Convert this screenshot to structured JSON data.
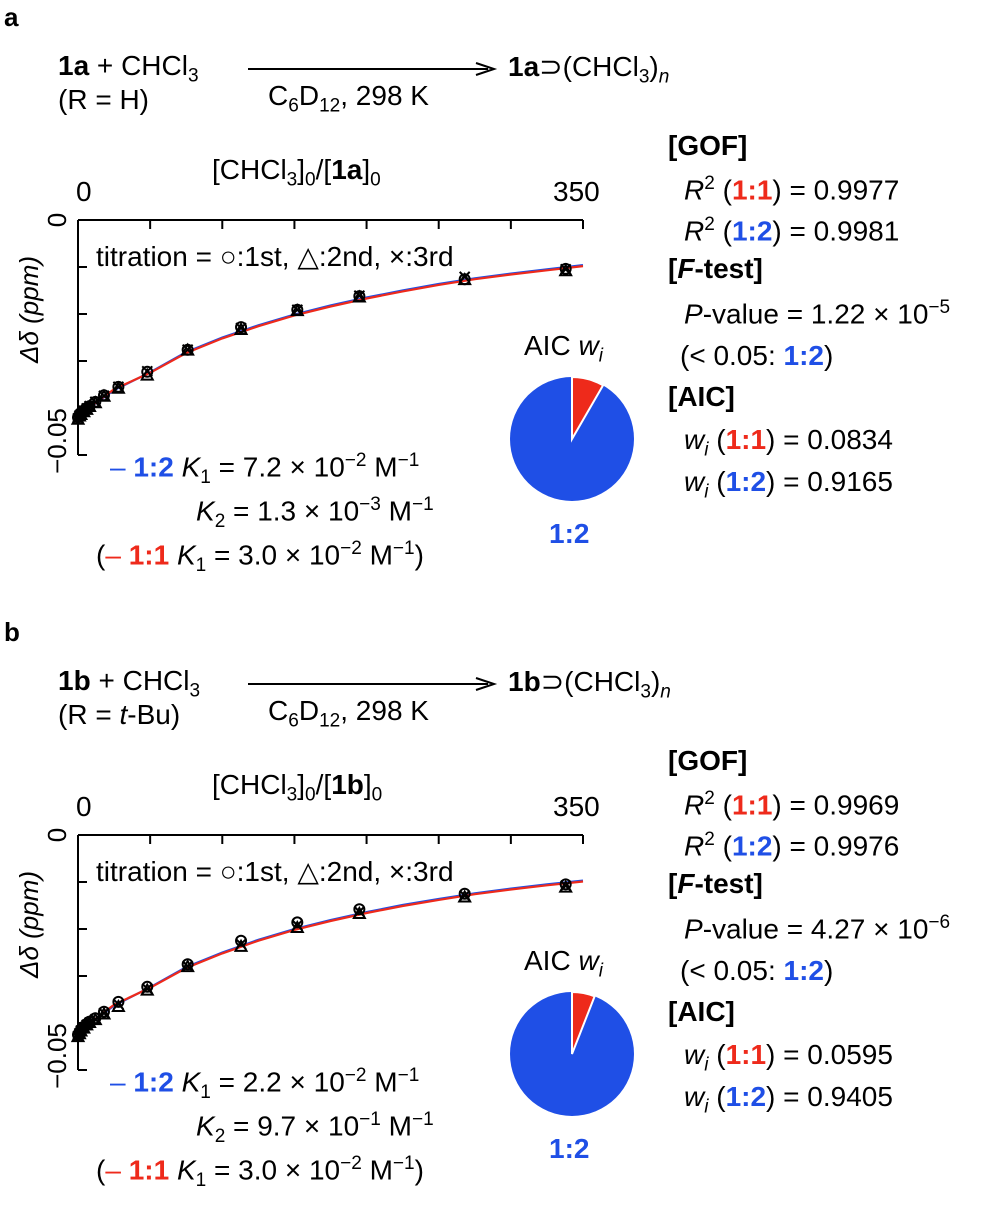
{
  "panels": [
    {
      "letter": "a",
      "reaction": {
        "host": "1a",
        "plus": " + CHCl",
        "plus_sub": "3",
        "substituent": "(R = H)",
        "conditions_pre": "C",
        "conditions_sub1": "6",
        "conditions_mid": "D",
        "conditions_sub2": "12",
        "conditions_post": ", 298 K",
        "product_host": "1a",
        "product_rest": "⊃(CHCl",
        "product_sub": "3",
        "product_close": ")",
        "product_n": "n"
      },
      "chart_data": {
        "type": "scatter",
        "xlabel": "[CHCl3]0/[1a]0",
        "ylabel": "Δδ (ppm)",
        "xlim": [
          0,
          350
        ],
        "ylim": [
          0,
          -0.05
        ],
        "x_ticks": [
          "0",
          "350"
        ],
        "y_ticks": [
          "0",
          "−0.05"
        ],
        "legend": "titration = ○:1st, △:2nd, ×:3rd",
        "series": [
          {
            "name": "1st",
            "marker": "circle",
            "x": [
              0,
              1,
              2,
              4,
              6,
              8,
              12,
              18,
              28,
              48,
              76,
              113,
              152,
              195,
              268,
              338
            ],
            "y": [
              -0.042,
              -0.0415,
              -0.0412,
              -0.0405,
              -0.04,
              -0.0396,
              -0.0387,
              -0.0373,
              -0.0355,
              -0.0323,
              -0.0276,
              -0.0228,
              -0.0191,
              -0.0162,
              -0.0126,
              -0.0104
            ]
          },
          {
            "name": "2nd",
            "marker": "triangle",
            "x": [
              0,
              1,
              2,
              4,
              6,
              8,
              12,
              18,
              28,
              48,
              76,
              113,
              152,
              195,
              268,
              338
            ],
            "y": [
              -0.0425,
              -0.0418,
              -0.0415,
              -0.0409,
              -0.0404,
              -0.0398,
              -0.039,
              -0.0376,
              -0.0359,
              -0.0331,
              -0.0278,
              -0.0234,
              -0.0194,
              -0.0165,
              -0.0128,
              -0.0109
            ]
          },
          {
            "name": "3rd",
            "marker": "cross",
            "x": [
              0,
              1,
              2,
              4,
              6,
              8,
              12,
              18,
              28,
              48,
              76,
              113,
              152,
              195,
              268,
              338
            ],
            "y": [
              -0.0422,
              -0.0416,
              -0.0413,
              -0.0406,
              -0.0401,
              -0.0396,
              -0.0387,
              -0.0374,
              -0.0355,
              -0.0322,
              -0.0276,
              -0.023,
              -0.0191,
              -0.0161,
              -0.0121,
              -0.0105
            ]
          },
          {
            "name": "1:2",
            "type": "line",
            "color": "#1f4fe6",
            "x": [
              0,
              10,
              25,
              50,
              75,
              100,
              125,
              150,
              175,
              200,
              225,
              250,
              275,
              300,
              325,
              350
            ],
            "y": [
              -0.0425,
              -0.0395,
              -0.0362,
              -0.0324,
              -0.0281,
              -0.025,
              -0.0224,
              -0.0201,
              -0.0182,
              -0.0165,
              -0.015,
              -0.0136,
              -0.0124,
              -0.0114,
              -0.0105,
              -0.0096
            ]
          },
          {
            "name": "1:1",
            "type": "line",
            "color": "#ee2a1b",
            "x": [
              0,
              10,
              25,
              50,
              75,
              100,
              125,
              150,
              175,
              200,
              225,
              250,
              275,
              300,
              325,
              350
            ],
            "y": [
              -0.0425,
              -0.0394,
              -0.036,
              -0.0325,
              -0.0283,
              -0.0252,
              -0.0226,
              -0.0203,
              -0.0184,
              -0.0167,
              -0.0152,
              -0.0138,
              -0.0126,
              -0.0116,
              -0.0107,
              -0.0098
            ]
          }
        ]
      },
      "axis": {
        "x_title_pre": "[CHCl",
        "x_title_sub1": "3",
        "x_title_mid": "]",
        "x_title_sub2": "0",
        "x_title_slash": "/[",
        "x_title_host": "1a",
        "x_title_close": "]",
        "x_title_sub3": "0",
        "x_min_label": "0",
        "x_max_label": "350",
        "y_top_label": "0",
        "y_bottom_label": "−0.05",
        "y_title": "Δδ (ppm)",
        "legend_text": "titration = ○:1st, △:2nd, ×:3rd"
      },
      "fit": {
        "line1_dash": "–",
        "line1_model": "1:2",
        "line1_k": "K",
        "line1_k_sub": "1",
        "line1_val": " = 7.2 × 10",
        "line1_exp": "−2",
        "line1_unit": " M",
        "line1_unit_exp": "−1",
        "line2_k": "K",
        "line2_k_sub": "2",
        "line2_val": " = 1.3 × 10",
        "line2_exp": "−3",
        "line2_unit": " M",
        "line2_unit_exp": "−1",
        "line3_open": "(",
        "line3_dash": "–",
        "line3_model": "1:1",
        "line3_k": "K",
        "line3_k_sub": "1",
        "line3_val": " = 3.0 × 10",
        "line3_exp": "−2",
        "line3_unit": " M",
        "line3_unit_exp": "−1",
        "line3_close": ")"
      },
      "aic_pie": {
        "label": "AIC ",
        "label_w": "w",
        "label_sub": "i",
        "weights": {
          "1:1": 0.0834,
          "1:2": 0.9165
        },
        "colors": {
          "1:1": "#ee2a1b",
          "1:2": "#1f4fe6"
        },
        "caption": "1:2"
      },
      "stats": {
        "gof_header": "[GOF]",
        "r2_11_pre": "R",
        "r2_11_exp": "2",
        "r2_11_open": " (",
        "r2_11_model": "1:1",
        "r2_11_value": ") = 0.9977",
        "r2_12_pre": "R",
        "r2_12_exp": "2",
        "r2_12_open": " (",
        "r2_12_model": "1:2",
        "r2_12_value": ") = 0.9981",
        "ftest_open": "[",
        "ftest_f": "F",
        "ftest_rest": "-test]",
        "p_label": "P",
        "p_value": "-value = 1.22 × 10",
        "p_exp": "−5",
        "p_note_pre": "(< 0.05: ",
        "p_note_model": "1:2",
        "p_note_close": ")",
        "aic_header": "[AIC]",
        "w11_pre": "w",
        "w11_sub": "i",
        "w11_open": " (",
        "w11_model": "1:1",
        "w11_value": ") =  0.0834",
        "w12_pre": "w",
        "w12_sub": "i",
        "w12_open": " (",
        "w12_model": "1:2",
        "w12_value": ") =  0.9165"
      }
    },
    {
      "letter": "b",
      "reaction": {
        "host": "1b",
        "plus": " + CHCl",
        "plus_sub": "3",
        "substituent_pre": "(R = ",
        "substituent_it": "t",
        "substituent_post": "-Bu)",
        "conditions_pre": "C",
        "conditions_sub1": "6",
        "conditions_mid": "D",
        "conditions_sub2": "12",
        "conditions_post": ", 298 K",
        "product_host": "1b",
        "product_rest": "⊃(CHCl",
        "product_sub": "3",
        "product_close": ")",
        "product_n": "n"
      },
      "chart_data": {
        "type": "scatter",
        "xlabel": "[CHCl3]0/[1b]0",
        "ylabel": "Δδ (ppm)",
        "xlim": [
          0,
          350
        ],
        "ylim": [
          0,
          -0.05
        ],
        "x_ticks": [
          "0",
          "350"
        ],
        "y_ticks": [
          "0",
          "−0.05"
        ],
        "legend": "titration = ○:1st, △:2nd, ×:3rd",
        "series": [
          {
            "name": "1st",
            "marker": "circle",
            "x": [
              0,
              1,
              2,
              4,
              6,
              8,
              12,
              18,
              28,
              48,
              76,
              113,
              152,
              195,
              268,
              338
            ],
            "y": [
              -0.0425,
              -0.042,
              -0.0415,
              -0.0408,
              -0.0402,
              -0.0397,
              -0.039,
              -0.0376,
              -0.0355,
              -0.0323,
              -0.0275,
              -0.0225,
              -0.0186,
              -0.0158,
              -0.0125,
              -0.0105
            ]
          },
          {
            "name": "2nd",
            "marker": "triangle",
            "x": [
              0,
              1,
              2,
              4,
              6,
              8,
              12,
              18,
              28,
              48,
              76,
              113,
              152,
              195,
              268,
              338
            ],
            "y": [
              -0.043,
              -0.0424,
              -0.0418,
              -0.0412,
              -0.0405,
              -0.04,
              -0.0394,
              -0.0382,
              -0.0366,
              -0.0331,
              -0.0281,
              -0.0238,
              -0.0198,
              -0.0168,
              -0.0133,
              -0.0112
            ]
          },
          {
            "name": "3rd",
            "marker": "cross",
            "x": [
              0,
              1,
              2,
              4,
              6,
              8,
              12,
              18,
              28,
              48,
              76,
              113,
              152,
              195,
              268,
              338
            ],
            "y": [
              -0.0428,
              -0.0422,
              -0.0416,
              -0.041,
              -0.0404,
              -0.0399,
              -0.0392,
              -0.0379,
              -0.036,
              -0.0327,
              -0.0279,
              -0.0232,
              -0.0192,
              -0.0163,
              -0.0129,
              -0.0108
            ]
          },
          {
            "name": "1:2",
            "type": "line",
            "color": "#1f4fe6",
            "x": [
              0,
              10,
              25,
              50,
              75,
              100,
              125,
              150,
              175,
              200,
              225,
              250,
              275,
              300,
              325,
              350
            ],
            "y": [
              -0.0428,
              -0.0397,
              -0.0363,
              -0.0324,
              -0.0281,
              -0.025,
              -0.0223,
              -0.02,
              -0.0181,
              -0.0164,
              -0.0149,
              -0.0136,
              -0.0124,
              -0.0114,
              -0.0105,
              -0.0097
            ]
          },
          {
            "name": "1:1",
            "type": "line",
            "color": "#ee2a1b",
            "x": [
              0,
              10,
              25,
              50,
              75,
              100,
              125,
              150,
              175,
              200,
              225,
              250,
              275,
              300,
              325,
              350
            ],
            "y": [
              -0.0428,
              -0.0396,
              -0.0361,
              -0.0325,
              -0.0283,
              -0.0252,
              -0.0225,
              -0.0202,
              -0.0183,
              -0.0166,
              -0.0151,
              -0.0138,
              -0.0126,
              -0.0116,
              -0.0107,
              -0.0099
            ]
          }
        ]
      },
      "axis": {
        "x_title_pre": "[CHCl",
        "x_title_sub1": "3",
        "x_title_mid": "]",
        "x_title_sub2": "0",
        "x_title_slash": "/[",
        "x_title_host": "1b",
        "x_title_close": "]",
        "x_title_sub3": "0",
        "x_min_label": "0",
        "x_max_label": "350",
        "y_top_label": "0",
        "y_bottom_label": "−0.05",
        "y_title": "Δδ (ppm)",
        "legend_text": "titration = ○:1st, △:2nd, ×:3rd"
      },
      "fit": {
        "line1_dash": "–",
        "line1_model": "1:2",
        "line1_k": "K",
        "line1_k_sub": "1",
        "line1_val": " = 2.2 × 10",
        "line1_exp": "−2",
        "line1_unit": " M",
        "line1_unit_exp": "−1",
        "line2_k": "K",
        "line2_k_sub": "2",
        "line2_val": " = 9.7 × 10",
        "line2_exp": "−1",
        "line2_unit": " M",
        "line2_unit_exp": "−1",
        "line3_open": "(",
        "line3_dash": "–",
        "line3_model": "1:1",
        "line3_k": "K",
        "line3_k_sub": "1",
        "line3_val": " = 3.0 × 10",
        "line3_exp": "−2",
        "line3_unit": " M",
        "line3_unit_exp": "−1",
        "line3_close": ")"
      },
      "aic_pie": {
        "label": "AIC ",
        "label_w": "w",
        "label_sub": "i",
        "weights": {
          "1:1": 0.0595,
          "1:2": 0.9405
        },
        "colors": {
          "1:1": "#ee2a1b",
          "1:2": "#1f4fe6"
        },
        "caption": "1:2"
      },
      "stats": {
        "gof_header": "[GOF]",
        "r2_11_pre": "R",
        "r2_11_exp": "2",
        "r2_11_open": " (",
        "r2_11_model": "1:1",
        "r2_11_value": ") = 0.9969",
        "r2_12_pre": "R",
        "r2_12_exp": "2",
        "r2_12_open": " (",
        "r2_12_model": "1:2",
        "r2_12_value": ") = 0.9976",
        "ftest_open": "[",
        "ftest_f": "F",
        "ftest_rest": "-test]",
        "p_label": "P",
        "p_value": "-value = 4.27 × 10",
        "p_exp": "−6",
        "p_note_pre": "(< 0.05: ",
        "p_note_model": "1:2",
        "p_note_close": ")",
        "aic_header": "[AIC]",
        "w11_pre": "w",
        "w11_sub": "i",
        "w11_open": " (",
        "w11_model": "1:1",
        "w11_value": ") =  0.0595",
        "w12_pre": "w",
        "w12_sub": "i",
        "w12_open": " (",
        "w12_model": "1:2",
        "w12_value": ") =  0.9405"
      }
    }
  ]
}
